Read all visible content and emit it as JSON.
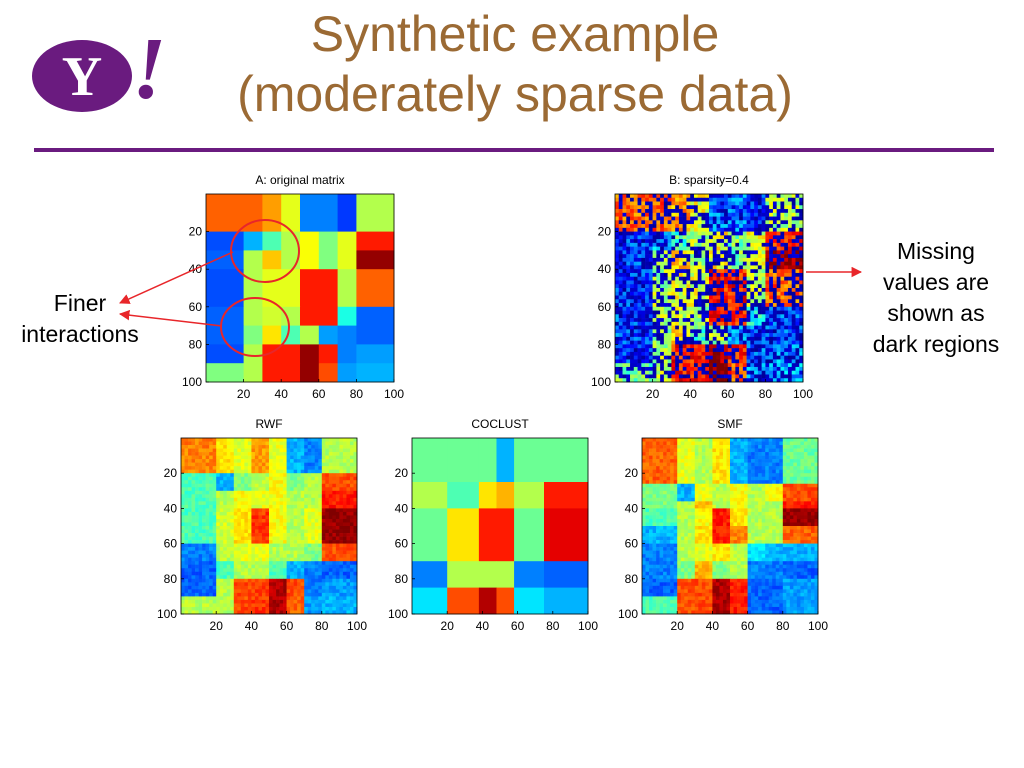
{
  "logo": {
    "letter": "Y",
    "bang": "!"
  },
  "title_line1": "Synthetic example",
  "title_line2": "(moderately sparse data)",
  "colors": {
    "brand_purple": "#6a1b7f",
    "title_brown": "#9b6a34",
    "annotation_red": "#e8262a"
  },
  "notes": {
    "finer": [
      "Finer",
      "interactions"
    ],
    "missing": [
      "Missing",
      "values are",
      "shown as",
      "dark regions"
    ]
  },
  "chart_data": [
    {
      "id": "A",
      "type": "heatmap",
      "title": "A: original matrix",
      "colormap": "jet",
      "value_range": [
        0,
        1
      ],
      "xticks": [
        20,
        40,
        60,
        80,
        100
      ],
      "yticks": [
        20,
        40,
        60,
        80,
        100
      ],
      "rows": 100,
      "cols": 100,
      "row_edges": [
        0,
        20,
        30,
        40,
        60,
        70,
        80,
        90,
        100
      ],
      "col_edges": [
        0,
        20,
        30,
        40,
        50,
        60,
        70,
        80,
        100
      ],
      "values": [
        [
          0.78,
          0.78,
          0.72,
          0.6,
          0.25,
          0.25,
          0.18,
          0.55
        ],
        [
          0.2,
          0.3,
          0.45,
          0.55,
          0.62,
          0.5,
          0.6,
          0.85
        ],
        [
          0.22,
          0.55,
          0.68,
          0.55,
          0.62,
          0.5,
          0.6,
          0.98
        ],
        [
          0.2,
          0.55,
          0.6,
          0.6,
          0.85,
          0.85,
          0.55,
          0.78
        ],
        [
          0.22,
          0.55,
          0.58,
          0.55,
          0.85,
          0.85,
          0.4,
          0.22
        ],
        [
          0.22,
          0.5,
          0.65,
          0.45,
          0.55,
          0.28,
          0.25,
          0.22
        ],
        [
          0.2,
          0.55,
          0.85,
          0.85,
          0.98,
          0.85,
          0.25,
          0.28
        ],
        [
          0.5,
          0.55,
          0.85,
          0.85,
          0.98,
          0.8,
          0.28,
          0.3
        ]
      ]
    },
    {
      "id": "B",
      "type": "heatmap",
      "title": "B: sparsity=0.4",
      "colormap": "jet",
      "value_range": [
        0,
        1
      ],
      "sparsity": 0.4,
      "xticks": [
        20,
        40,
        60,
        80,
        100
      ],
      "yticks": [
        20,
        40,
        60,
        80,
        100
      ],
      "rows": 100,
      "cols": 100,
      "row_edges": [
        0,
        20,
        30,
        40,
        60,
        70,
        80,
        90,
        100
      ],
      "col_edges": [
        0,
        20,
        30,
        40,
        50,
        60,
        70,
        80,
        100
      ],
      "values": [
        [
          0.78,
          0.78,
          0.72,
          0.6,
          0.25,
          0.25,
          0.18,
          0.55
        ],
        [
          0.2,
          0.3,
          0.45,
          0.55,
          0.62,
          0.5,
          0.6,
          0.85
        ],
        [
          0.22,
          0.55,
          0.68,
          0.55,
          0.62,
          0.5,
          0.6,
          0.98
        ],
        [
          0.2,
          0.55,
          0.6,
          0.6,
          0.85,
          0.85,
          0.55,
          0.78
        ],
        [
          0.22,
          0.55,
          0.58,
          0.55,
          0.85,
          0.85,
          0.4,
          0.22
        ],
        [
          0.22,
          0.5,
          0.65,
          0.45,
          0.55,
          0.28,
          0.25,
          0.22
        ],
        [
          0.2,
          0.55,
          0.85,
          0.85,
          0.98,
          0.85,
          0.25,
          0.28
        ],
        [
          0.5,
          0.55,
          0.85,
          0.85,
          0.98,
          0.8,
          0.28,
          0.3
        ]
      ]
    },
    {
      "id": "RWF",
      "type": "heatmap",
      "title": "RWF",
      "colormap": "jet",
      "value_range": [
        0,
        1
      ],
      "xticks": [
        20,
        40,
        60,
        80,
        100
      ],
      "yticks": [
        20,
        40,
        60,
        80,
        100
      ],
      "rows": 100,
      "cols": 100,
      "row_edges": [
        0,
        20,
        30,
        40,
        60,
        70,
        80,
        90,
        100
      ],
      "col_edges": [
        0,
        20,
        30,
        40,
        50,
        60,
        70,
        80,
        100
      ],
      "values": [
        [
          0.75,
          0.65,
          0.6,
          0.72,
          0.6,
          0.3,
          0.25,
          0.55
        ],
        [
          0.45,
          0.3,
          0.5,
          0.55,
          0.62,
          0.5,
          0.55,
          0.8
        ],
        [
          0.45,
          0.55,
          0.62,
          0.6,
          0.62,
          0.55,
          0.55,
          0.85
        ],
        [
          0.45,
          0.58,
          0.65,
          0.82,
          0.62,
          0.55,
          0.6,
          0.98
        ],
        [
          0.25,
          0.55,
          0.6,
          0.6,
          0.55,
          0.55,
          0.5,
          0.8
        ],
        [
          0.22,
          0.45,
          0.55,
          0.55,
          0.45,
          0.3,
          0.25,
          0.22
        ],
        [
          0.22,
          0.55,
          0.8,
          0.82,
          0.95,
          0.8,
          0.25,
          0.28
        ],
        [
          0.55,
          0.55,
          0.8,
          0.82,
          0.95,
          0.78,
          0.28,
          0.3
        ]
      ]
    },
    {
      "id": "COCLUST",
      "type": "heatmap",
      "title": "COCLUST",
      "colormap": "jet",
      "value_range": [
        0,
        1
      ],
      "xticks": [
        20,
        40,
        60,
        80,
        100
      ],
      "yticks": [
        20,
        40,
        60,
        80,
        100
      ],
      "rows": 100,
      "cols": 100,
      "row_edges": [
        0,
        25,
        40,
        70,
        85,
        100
      ],
      "col_edges": [
        0,
        20,
        38,
        48,
        58,
        75,
        100
      ],
      "values": [
        [
          0.48,
          0.48,
          0.48,
          0.3,
          0.48,
          0.48
        ],
        [
          0.55,
          0.45,
          0.65,
          0.7,
          0.55,
          0.85
        ],
        [
          0.48,
          0.65,
          0.85,
          0.85,
          0.48,
          0.9
        ],
        [
          0.25,
          0.55,
          0.55,
          0.55,
          0.25,
          0.22
        ],
        [
          0.35,
          0.8,
          0.95,
          0.8,
          0.35,
          0.3
        ]
      ]
    },
    {
      "id": "SMF",
      "type": "heatmap",
      "title": "SMF",
      "colormap": "jet",
      "value_range": [
        0,
        1
      ],
      "xticks": [
        20,
        40,
        60,
        80,
        100
      ],
      "yticks": [
        20,
        40,
        60,
        80,
        100
      ],
      "rows": 100,
      "cols": 100,
      "row_edges": [
        0,
        25,
        35,
        40,
        50,
        60,
        70,
        80,
        90,
        100
      ],
      "col_edges": [
        0,
        20,
        30,
        40,
        50,
        60,
        70,
        80,
        100
      ],
      "values": [
        [
          0.78,
          0.6,
          0.55,
          0.65,
          0.3,
          0.25,
          0.25,
          0.48
        ],
        [
          0.5,
          0.3,
          0.6,
          0.55,
          0.62,
          0.55,
          0.62,
          0.8
        ],
        [
          0.5,
          0.55,
          0.7,
          0.55,
          0.62,
          0.55,
          0.55,
          0.85
        ],
        [
          0.45,
          0.55,
          0.62,
          0.85,
          0.65,
          0.55,
          0.55,
          0.98
        ],
        [
          0.3,
          0.55,
          0.65,
          0.85,
          0.75,
          0.55,
          0.55,
          0.78
        ],
        [
          0.25,
          0.55,
          0.6,
          0.65,
          0.55,
          0.35,
          0.3,
          0.3
        ],
        [
          0.25,
          0.5,
          0.7,
          0.5,
          0.55,
          0.25,
          0.25,
          0.22
        ],
        [
          0.22,
          0.8,
          0.8,
          0.95,
          0.85,
          0.22,
          0.22,
          0.28
        ],
        [
          0.45,
          0.8,
          0.8,
          0.95,
          0.85,
          0.22,
          0.22,
          0.28
        ]
      ]
    }
  ]
}
